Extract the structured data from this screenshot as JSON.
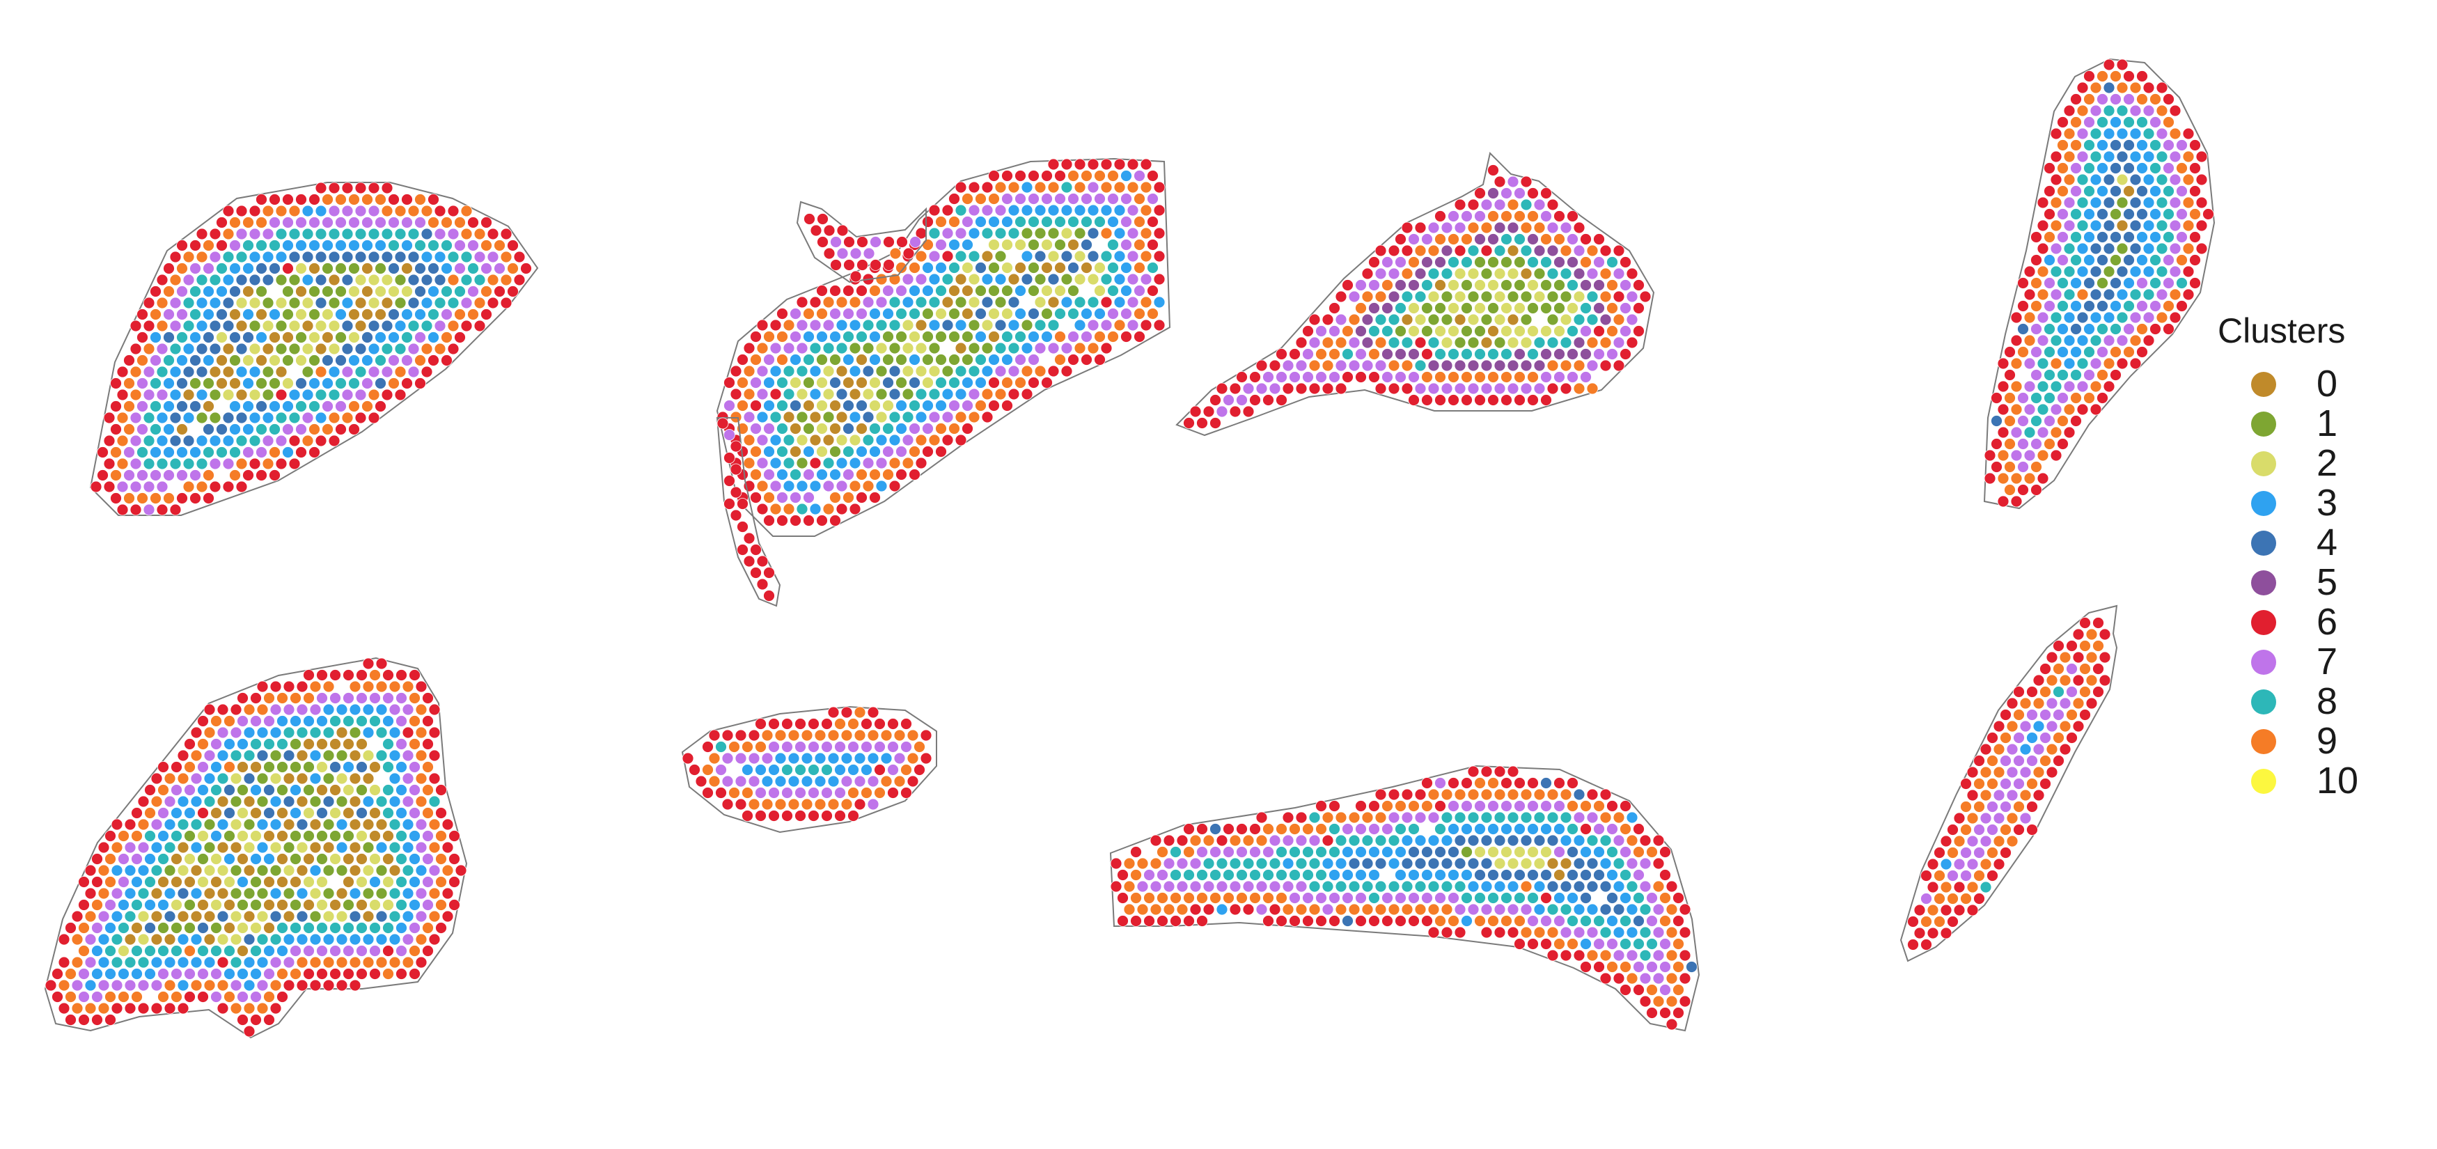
{
  "legend": {
    "title": "Clusters",
    "items": [
      {
        "label": "0",
        "color": "#C08A2A"
      },
      {
        "label": "1",
        "color": "#7EA632"
      },
      {
        "label": "2",
        "color": "#D9DC6A"
      },
      {
        "label": "3",
        "color": "#2FA2F0"
      },
      {
        "label": "4",
        "color": "#3C74B4"
      },
      {
        "label": "5",
        "color": "#8E4F9C"
      },
      {
        "label": "6",
        "color": "#E11F2F"
      },
      {
        "label": "7",
        "color": "#BF74EA"
      },
      {
        "label": "8",
        "color": "#2DB7B8"
      },
      {
        "label": "9",
        "color": "#F57C26"
      },
      {
        "label": "10",
        "color": "#FCF73F"
      }
    ]
  }
}
